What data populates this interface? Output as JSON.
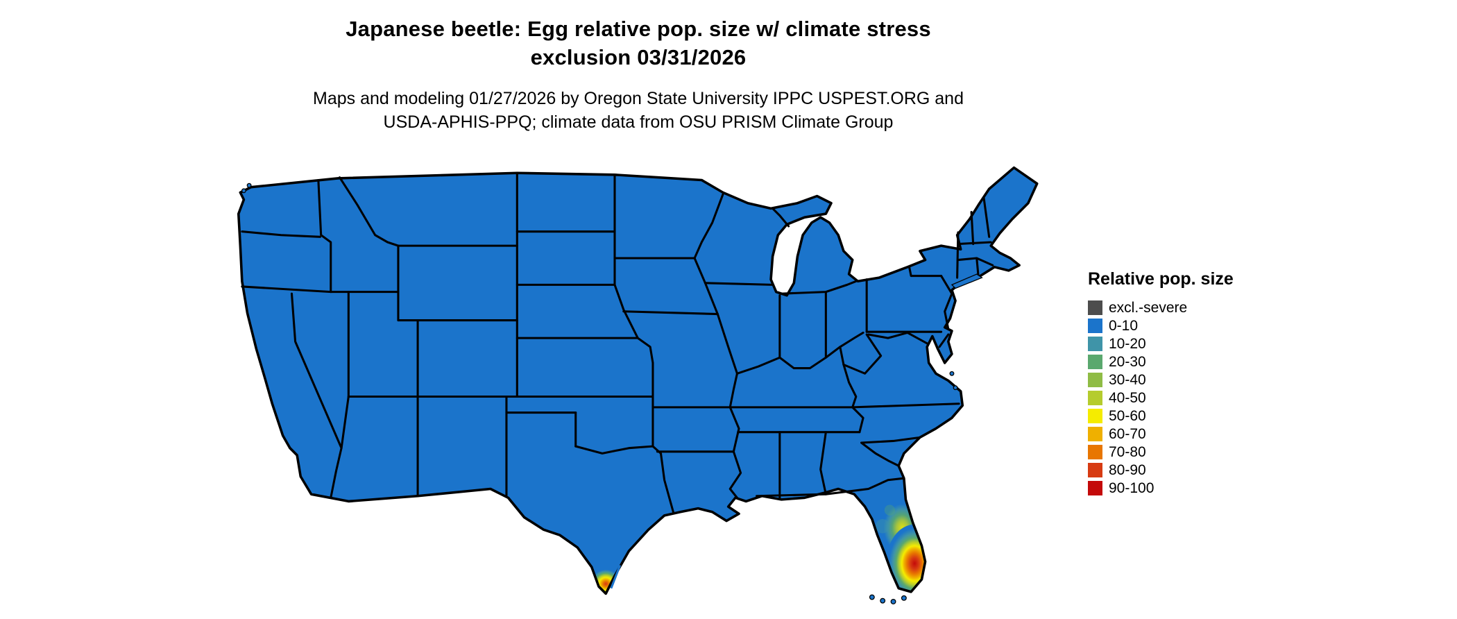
{
  "header": {
    "title_line1": "Japanese beetle: Egg relative pop. size w/ climate stress",
    "title_line2": "exclusion 03/31/2026",
    "subtitle_line1": "Maps and modeling 01/27/2026 by Oregon State University IPPC USPEST.ORG and",
    "subtitle_line2": "USDA-APHIS-PPQ; climate data from OSU PRISM Climate Group"
  },
  "legend": {
    "title": "Relative pop. size",
    "items": [
      {
        "label": "excl.-severe",
        "color": "#4d4d4d"
      },
      {
        "label": "0-10",
        "color": "#1b74cb"
      },
      {
        "label": "10-20",
        "color": "#3f94a8"
      },
      {
        "label": "20-30",
        "color": "#5aa86e"
      },
      {
        "label": "30-40",
        "color": "#8fbc45"
      },
      {
        "label": "40-50",
        "color": "#b5cc2e"
      },
      {
        "label": "50-60",
        "color": "#f5ec00"
      },
      {
        "label": "60-70",
        "color": "#efb000"
      },
      {
        "label": "70-80",
        "color": "#e87600"
      },
      {
        "label": "80-90",
        "color": "#d73b12"
      },
      {
        "label": "90-100",
        "color": "#c40a0a"
      }
    ]
  },
  "map": {
    "name": "continental-us-choropleth",
    "base_color": "#1b74cb",
    "border_color": "#000000",
    "background_color": "#ffffff",
    "hotspots": [
      {
        "location": "south-florida",
        "peak_bin": "90-100"
      },
      {
        "location": "central-florida-coast",
        "peak_bin": "40-50"
      },
      {
        "location": "south-texas-tip",
        "peak_bin": "80-90"
      }
    ]
  }
}
